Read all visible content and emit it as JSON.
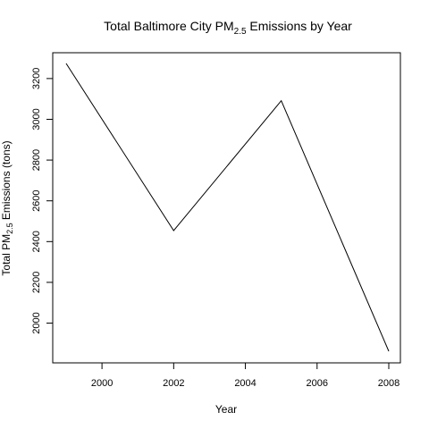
{
  "chart_data": {
    "type": "line",
    "title": {
      "prefix": "Total Baltimore City PM",
      "subscript": "2.5",
      "suffix": " Emissions by Year"
    },
    "xlabel": "Year",
    "ylabel": {
      "prefix": "Total PM",
      "subscript": "2.5",
      "suffix": " Emissions (tons)"
    },
    "xlim": [
      1999,
      2008
    ],
    "ylim": [
      1862,
      3274
    ],
    "x_ticks": [
      2000,
      2002,
      2004,
      2006,
      2008
    ],
    "y_ticks": [
      2000,
      2200,
      2400,
      2600,
      2800,
      3000,
      3200
    ],
    "x_tick_labels": [
      "2000",
      "2002",
      "2004",
      "2006",
      "2008"
    ],
    "y_tick_labels": [
      "2000",
      "2200",
      "2400",
      "2600",
      "2800",
      "3000",
      "3200"
    ],
    "series": [
      {
        "x": [
          1999,
          2002,
          2005,
          2008
        ],
        "y": [
          3274,
          2454,
          3091,
          1862
        ]
      }
    ],
    "grid": false,
    "line_color": "#000000"
  }
}
